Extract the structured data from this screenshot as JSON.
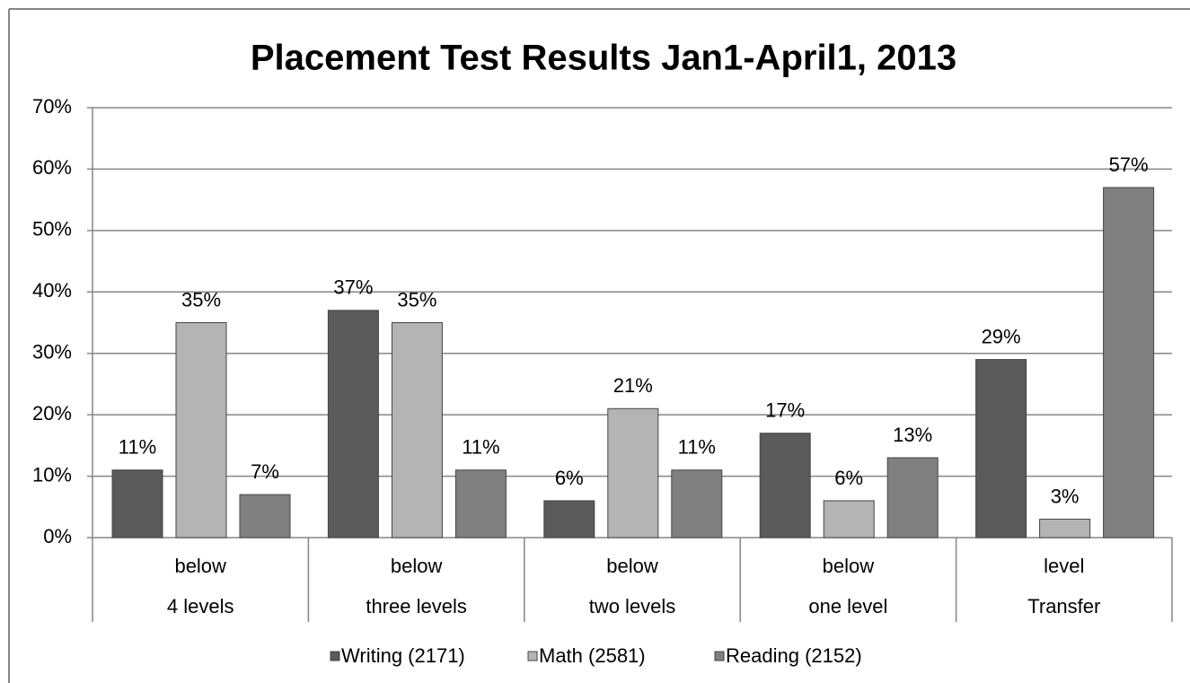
{
  "chart_data": {
    "type": "bar",
    "title": "Placement Test Results Jan1-April1, 2013",
    "categories": [
      [
        "below",
        "4 levels"
      ],
      [
        "below",
        "three levels"
      ],
      [
        "below",
        "two levels"
      ],
      [
        "below",
        "one level"
      ],
      [
        "level",
        "Transfer"
      ]
    ],
    "series": [
      {
        "name": "Writing (2171)",
        "color": "#5a5a5a",
        "values": [
          11,
          37,
          6,
          17,
          29
        ],
        "value_labels": [
          "11%",
          "37%",
          "6%",
          "17%",
          "29%"
        ]
      },
      {
        "name": "Math (2581)",
        "color": "#b4b4b4",
        "values": [
          35,
          35,
          21,
          6,
          3
        ],
        "value_labels": [
          "35%",
          "35%",
          "21%",
          "6%",
          "3%"
        ]
      },
      {
        "name": "Reading (2152)",
        "color": "#808080",
        "values": [
          7,
          11,
          11,
          13,
          57
        ],
        "value_labels": [
          "7%",
          "11%",
          "11%",
          "13%",
          "57%"
        ]
      }
    ],
    "ylim": [
      0,
      70
    ],
    "yticks": [
      {
        "value": 0,
        "label": "0%"
      },
      {
        "value": 10,
        "label": "10%"
      },
      {
        "value": 20,
        "label": "20%"
      },
      {
        "value": 30,
        "label": "30%"
      },
      {
        "value": 40,
        "label": "40%"
      },
      {
        "value": 50,
        "label": "50%"
      },
      {
        "value": 60,
        "label": "60%"
      },
      {
        "value": 70,
        "label": "70%"
      }
    ],
    "grid": true,
    "legend": "bottom"
  }
}
